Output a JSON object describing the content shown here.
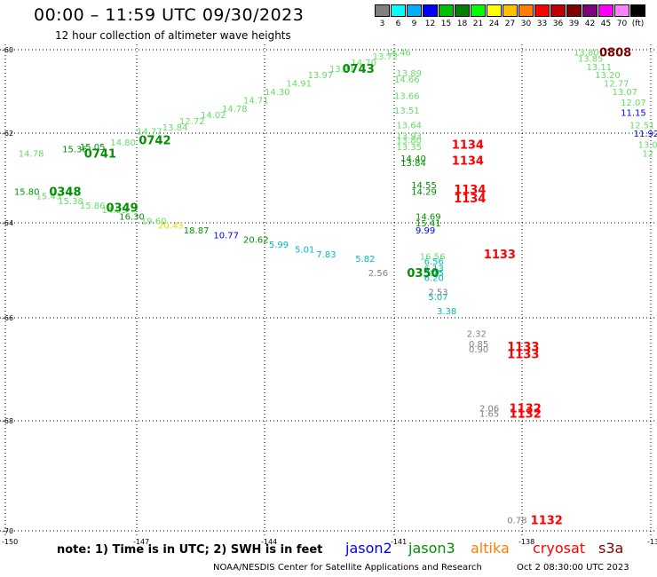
{
  "header": {
    "title": "00:00 – 11:59 UTC 09/30/2023",
    "subtitle": "12 hour collection of altimeter wave heights"
  },
  "scale": {
    "colors": [
      "#808080",
      "#00ffff",
      "#00b0ff",
      "#0000ff",
      "#00c000",
      "#008000",
      "#00ff00",
      "#ffff00",
      "#ffc000",
      "#ff8000",
      "#ff0000",
      "#c00000",
      "#800000",
      "#800080",
      "#ff00ff",
      "#ff80ff",
      "#000000"
    ],
    "labels": [
      "3",
      "6",
      "9",
      "12",
      "15",
      "18",
      "21",
      "24",
      "27",
      "30",
      "33",
      "36",
      "39",
      "42",
      "45",
      "70",
      "(ft)"
    ]
  },
  "axes": {
    "lon_labels": [
      "-150",
      "-147",
      "-144",
      "-141",
      "-138",
      "-135"
    ],
    "lat_labels": [
      "-60",
      "-62",
      "-64",
      "-66",
      "-68",
      "-70"
    ]
  },
  "chart_data": {
    "type": "scatter",
    "xlabel": "",
    "ylabel": "",
    "xlim": [
      -150,
      -135
    ],
    "ylim": [
      -70,
      -60
    ],
    "grid": true,
    "series": [
      {
        "satellite": "jason3",
        "color": "#009000",
        "points": [
          {
            "x": -148.2,
            "y": -62.45,
            "label": "0741"
          },
          {
            "x": -146.95,
            "y": -62.15,
            "label": "0742"
          },
          {
            "x": -142.2,
            "y": -60.45,
            "label": "0743"
          },
          {
            "x": -149.0,
            "y": -63.3,
            "label": "0348"
          },
          {
            "x": -147.7,
            "y": -63.65,
            "label": "0349"
          },
          {
            "x": -140.7,
            "y": -65.05,
            "label": "0350"
          }
        ]
      },
      {
        "satellite": "cryosat",
        "color": "#ff0000",
        "points": [
          {
            "x": -139.65,
            "y": -62.25,
            "label": "1134"
          },
          {
            "x": -139.65,
            "y": -62.6,
            "label": "1134"
          },
          {
            "x": -139.6,
            "y": -63.25,
            "label": "1134"
          },
          {
            "x": -139.6,
            "y": -63.45,
            "label": "1134"
          },
          {
            "x": -138.9,
            "y": -64.65,
            "label": "1133"
          },
          {
            "x": -138.35,
            "y": -66.55,
            "label": "1133"
          },
          {
            "x": -138.35,
            "y": -66.7,
            "label": "1133"
          },
          {
            "x": -138.3,
            "y": -67.75,
            "label": "1132"
          },
          {
            "x": -138.3,
            "y": -67.85,
            "label": "1132"
          },
          {
            "x": -137.8,
            "y": -69.8,
            "label": "1132"
          }
        ]
      },
      {
        "satellite": "other",
        "color": "#800000",
        "points": [
          {
            "x": -136.2,
            "y": -60.05,
            "label": "0808"
          }
        ]
      }
    ],
    "wave_heights": [
      {
        "x": -149.7,
        "y": -62.45,
        "v": "14.78",
        "c": "#66dd66"
      },
      {
        "x": -148.7,
        "y": -62.35,
        "v": "15.36",
        "c": "#009000"
      },
      {
        "x": -148.3,
        "y": -62.3,
        "v": "15.05",
        "c": "#009000"
      },
      {
        "x": -147.6,
        "y": -62.2,
        "v": "14.80",
        "c": "#66dd66"
      },
      {
        "x": -147.0,
        "y": -61.95,
        "v": "14.77",
        "c": "#66dd66"
      },
      {
        "x": -146.4,
        "y": -61.85,
        "v": "13.84",
        "c": "#66dd66"
      },
      {
        "x": -146.0,
        "y": -61.7,
        "v": "12.72",
        "c": "#66dd66"
      },
      {
        "x": -145.5,
        "y": -61.55,
        "v": "14.02",
        "c": "#66dd66"
      },
      {
        "x": -145.0,
        "y": -61.4,
        "v": "14.78",
        "c": "#66dd66"
      },
      {
        "x": -144.5,
        "y": -61.2,
        "v": "14.71",
        "c": "#66dd66"
      },
      {
        "x": -144.0,
        "y": -61.0,
        "v": "14.30",
        "c": "#66dd66"
      },
      {
        "x": -143.5,
        "y": -60.8,
        "v": "14.91",
        "c": "#66dd66"
      },
      {
        "x": -143.0,
        "y": -60.6,
        "v": "13.97",
        "c": "#66dd66"
      },
      {
        "x": -142.5,
        "y": -60.45,
        "v": "13.21",
        "c": "#66dd66"
      },
      {
        "x": -142.0,
        "y": -60.3,
        "v": "14.70",
        "c": "#66dd66"
      },
      {
        "x": -141.5,
        "y": -60.15,
        "v": "13.72",
        "c": "#66dd66"
      },
      {
        "x": -141.2,
        "y": -60.05,
        "v": "14.46",
        "c": "#66dd66"
      },
      {
        "x": -140.95,
        "y": -60.55,
        "v": "13.89",
        "c": "#66dd66"
      },
      {
        "x": -141.0,
        "y": -60.7,
        "v": "14.66",
        "c": "#66dd66"
      },
      {
        "x": -141.0,
        "y": -61.1,
        "v": "13.66",
        "c": "#66dd66"
      },
      {
        "x": -141.0,
        "y": -61.45,
        "v": "13.51",
        "c": "#66dd66"
      },
      {
        "x": -140.95,
        "y": -61.8,
        "v": "13.64",
        "c": "#66dd66"
      },
      {
        "x": -140.95,
        "y": -62.05,
        "v": "13.93",
        "c": "#66dd66"
      },
      {
        "x": -140.95,
        "y": -62.15,
        "v": "13.80",
        "c": "#66dd66"
      },
      {
        "x": -140.95,
        "y": -62.3,
        "v": "13.35",
        "c": "#66dd66"
      },
      {
        "x": -140.85,
        "y": -62.55,
        "v": "14.40",
        "c": "#009000"
      },
      {
        "x": -140.85,
        "y": -62.65,
        "v": "13.84",
        "c": "#009000"
      },
      {
        "x": -140.6,
        "y": -63.15,
        "v": "14.55",
        "c": "#009000"
      },
      {
        "x": -140.6,
        "y": -63.3,
        "v": "14.29",
        "c": "#009000"
      },
      {
        "x": -140.5,
        "y": -63.85,
        "v": "14.69",
        "c": "#009000"
      },
      {
        "x": -140.5,
        "y": -64.0,
        "v": "15.41",
        "c": "#009000"
      },
      {
        "x": -140.5,
        "y": -64.15,
        "v": "9.99",
        "c": "#0000ff"
      },
      {
        "x": -140.4,
        "y": -64.7,
        "v": "16.56",
        "c": "#66dd66"
      },
      {
        "x": -140.3,
        "y": -64.8,
        "v": "6.56",
        "c": "#00bbbb"
      },
      {
        "x": -140.3,
        "y": -64.95,
        "v": "6.13",
        "c": "#00bbbb"
      },
      {
        "x": -140.3,
        "y": -65.05,
        "v": "5.75",
        "c": "#00bbbb"
      },
      {
        "x": -140.3,
        "y": -65.15,
        "v": "6.20",
        "c": "#00bbbb"
      },
      {
        "x": -140.2,
        "y": -65.45,
        "v": "2.53",
        "c": "#808080"
      },
      {
        "x": -140.2,
        "y": -65.55,
        "v": "5.07",
        "c": "#00bbbb"
      },
      {
        "x": -140.0,
        "y": -65.85,
        "v": "3.38",
        "c": "#00bbbb"
      },
      {
        "x": -141.6,
        "y": -65.05,
        "v": "2.56",
        "c": "#808080"
      },
      {
        "x": -149.8,
        "y": -63.3,
        "v": "15.80",
        "c": "#009000"
      },
      {
        "x": -149.3,
        "y": -63.4,
        "v": "15.43",
        "c": "#66dd66"
      },
      {
        "x": -148.8,
        "y": -63.5,
        "v": "15.38",
        "c": "#66dd66"
      },
      {
        "x": -148.3,
        "y": -63.6,
        "v": "15.86",
        "c": "#66dd66"
      },
      {
        "x": -147.8,
        "y": -63.7,
        "v": "14.95",
        "c": "#66dd66"
      },
      {
        "x": -147.4,
        "y": -63.85,
        "v": "16.30",
        "c": "#009000"
      },
      {
        "x": -146.9,
        "y": -63.95,
        "v": "19.60",
        "c": "#66dd66"
      },
      {
        "x": -146.5,
        "y": -64.05,
        "v": "20.43",
        "c": "#e0e000"
      },
      {
        "x": -145.9,
        "y": -64.15,
        "v": "18.87",
        "c": "#009000"
      },
      {
        "x": -145.2,
        "y": -64.25,
        "v": "10.77",
        "c": "#0000ff"
      },
      {
        "x": -144.5,
        "y": -64.35,
        "v": "20.62",
        "c": "#009000"
      },
      {
        "x": -143.9,
        "y": -64.45,
        "v": "5.99",
        "c": "#00bbbb"
      },
      {
        "x": -143.3,
        "y": -64.55,
        "v": "5.01",
        "c": "#00bbbb"
      },
      {
        "x": -142.8,
        "y": -64.65,
        "v": "7.83",
        "c": "#00bbbb"
      },
      {
        "x": -141.9,
        "y": -64.75,
        "v": "5.82",
        "c": "#00bbbb"
      },
      {
        "x": -139.3,
        "y": -66.3,
        "v": "2.32",
        "c": "#808080"
      },
      {
        "x": -139.25,
        "y": -66.5,
        "v": "0.85",
        "c": "#808080"
      },
      {
        "x": -139.25,
        "y": -66.6,
        "v": "0.90",
        "c": "#808080"
      },
      {
        "x": -139.0,
        "y": -67.75,
        "v": "2.06",
        "c": "#808080"
      },
      {
        "x": -139.0,
        "y": -67.85,
        "v": "1.65",
        "c": "#808080"
      },
      {
        "x": -138.35,
        "y": -69.8,
        "v": "0.78",
        "c": "#808080"
      },
      {
        "x": -136.8,
        "y": -60.05,
        "v": "13.80",
        "c": "#66dd66"
      },
      {
        "x": -136.7,
        "y": -60.2,
        "v": "13.85",
        "c": "#66dd66"
      },
      {
        "x": -136.5,
        "y": -60.4,
        "v": "13.11",
        "c": "#66dd66"
      },
      {
        "x": -136.3,
        "y": -60.6,
        "v": "13.20",
        "c": "#66dd66"
      },
      {
        "x": -136.1,
        "y": -60.8,
        "v": "12.77",
        "c": "#66dd66"
      },
      {
        "x": -135.9,
        "y": -61.0,
        "v": "13.07",
        "c": "#66dd66"
      },
      {
        "x": -135.7,
        "y": -61.25,
        "v": "12.07",
        "c": "#66dd66"
      },
      {
        "x": -135.7,
        "y": -61.5,
        "v": "11.15",
        "c": "#0000ff"
      },
      {
        "x": -135.5,
        "y": -61.8,
        "v": "12.51",
        "c": "#66dd66"
      },
      {
        "x": -135.4,
        "y": -62.0,
        "v": "11.92",
        "c": "#0000ff"
      },
      {
        "x": -135.3,
        "y": -62.25,
        "v": "13.0",
        "c": "#66dd66"
      },
      {
        "x": -135.2,
        "y": -62.45,
        "v": "12",
        "c": "#66dd66"
      }
    ]
  },
  "footer": {
    "note": "note: 1) Time is in UTC; 2) SWH is in feet",
    "legend": [
      {
        "label": "jason2",
        "color": "#0000ff"
      },
      {
        "label": "jason3",
        "color": "#009000"
      },
      {
        "label": "altika",
        "color": "#ff8000"
      },
      {
        "label": "cryosat",
        "color": "#ff0000"
      },
      {
        "label": "s3a",
        "color": "#800000"
      }
    ],
    "credit": "NOAA/NESDIS Center for Satellite Applications and Research",
    "timestamp": "Oct  2 08:30:00 UTC 2023"
  }
}
